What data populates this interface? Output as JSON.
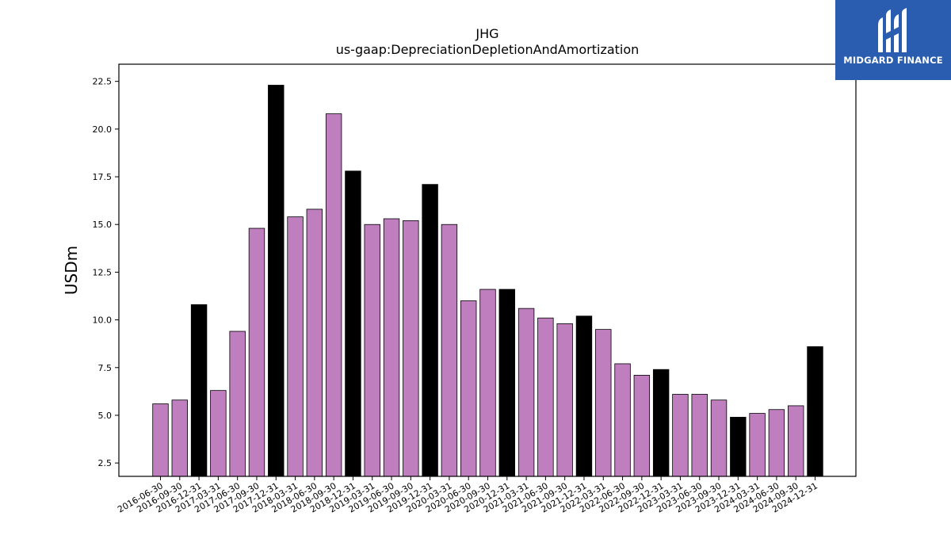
{
  "chart_data": {
    "type": "bar",
    "title": "JHG",
    "subtitle": "us-gaap:DepreciationDepletionAndAmortization",
    "xlabel": "",
    "ylabel": "USDm",
    "ylim": [
      1.8,
      23.4
    ],
    "yticks": [
      2.5,
      5.0,
      7.5,
      10.0,
      12.5,
      15.0,
      17.5,
      20.0,
      22.5
    ],
    "ytick_labels": [
      "2.5",
      "5.0",
      "7.5",
      "10.0",
      "12.5",
      "15.0",
      "17.5",
      "20.0",
      "22.5"
    ],
    "categories": [
      "2016-06-30",
      "2016-09-30",
      "2016-12-31",
      "2017-03-31",
      "2017-06-30",
      "2017-09-30",
      "2017-12-31",
      "2018-03-31",
      "2018-06-30",
      "2018-09-30",
      "2018-12-31",
      "2019-03-31",
      "2019-06-30",
      "2019-09-30",
      "2019-12-31",
      "2020-03-31",
      "2020-06-30",
      "2020-09-30",
      "2020-12-31",
      "2021-03-31",
      "2021-06-30",
      "2021-09-30",
      "2021-12-31",
      "2022-03-31",
      "2022-06-30",
      "2022-09-30",
      "2022-12-31",
      "2023-03-31",
      "2023-06-30",
      "2023-09-30",
      "2023-12-31",
      "2024-03-31",
      "2024-06-30",
      "2024-09-30",
      "2024-12-31"
    ],
    "values": [
      5.6,
      5.8,
      10.8,
      6.3,
      9.4,
      14.8,
      22.3,
      15.4,
      15.8,
      20.8,
      17.8,
      15.0,
      15.3,
      15.2,
      17.1,
      15.0,
      11.0,
      11.6,
      11.6,
      10.6,
      10.1,
      9.8,
      10.2,
      9.5,
      7.7,
      7.1,
      7.4,
      6.1,
      6.1,
      5.8,
      4.9,
      5.1,
      5.3,
      5.5,
      8.6
    ],
    "colors": {
      "quarter": "#bf7fbf",
      "year_end": "#000000",
      "edge": "#000000"
    },
    "grid": false,
    "legend": "none"
  },
  "logo": {
    "text": "MIDGARD FINANCE",
    "background": "#2a5db0"
  }
}
